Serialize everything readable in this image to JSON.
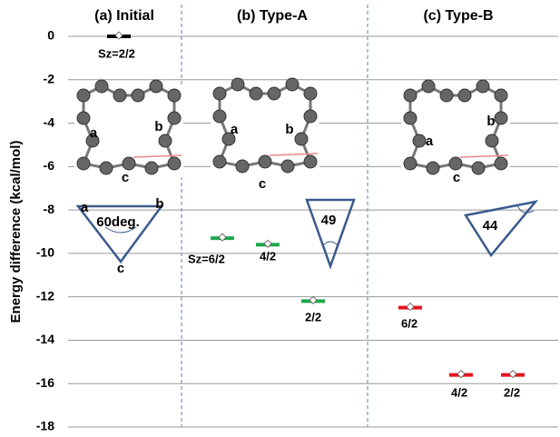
{
  "chart_data": {
    "type": "level",
    "y_label": "Energy difference (kcal/mol)",
    "ylim": [
      -18,
      0
    ],
    "yticks": [
      0,
      -2,
      -4,
      -6,
      -8,
      -10,
      -12,
      -14,
      -16,
      -18
    ],
    "grid": true,
    "panels": [
      {
        "title": "(a) Initial",
        "color": "#000000",
        "categories": [
          "Sz=2/2"
        ],
        "values": [
          0
        ],
        "molecule_labels": [
          "a",
          "b",
          "c"
        ],
        "triangle_labels": [
          "a",
          "b",
          "c"
        ],
        "angle_label": "60deg."
      },
      {
        "title": "(b) Type-A",
        "color": "#1ea84b",
        "categories": [
          "Sz=6/2",
          "4/2",
          "2/2"
        ],
        "values": [
          -9.3,
          -9.6,
          -12.2
        ],
        "molecule_labels": [
          "a",
          "b",
          "c"
        ],
        "angle_label": "49"
      },
      {
        "title": "(c) Type-B",
        "color": "#e8141c",
        "categories": [
          "6/2",
          "4/2",
          "2/2"
        ],
        "values": [
          -12.5,
          -15.6,
          -15.6
        ],
        "molecule_labels": [
          "a",
          "b",
          "c"
        ],
        "angle_label": "44"
      }
    ]
  }
}
